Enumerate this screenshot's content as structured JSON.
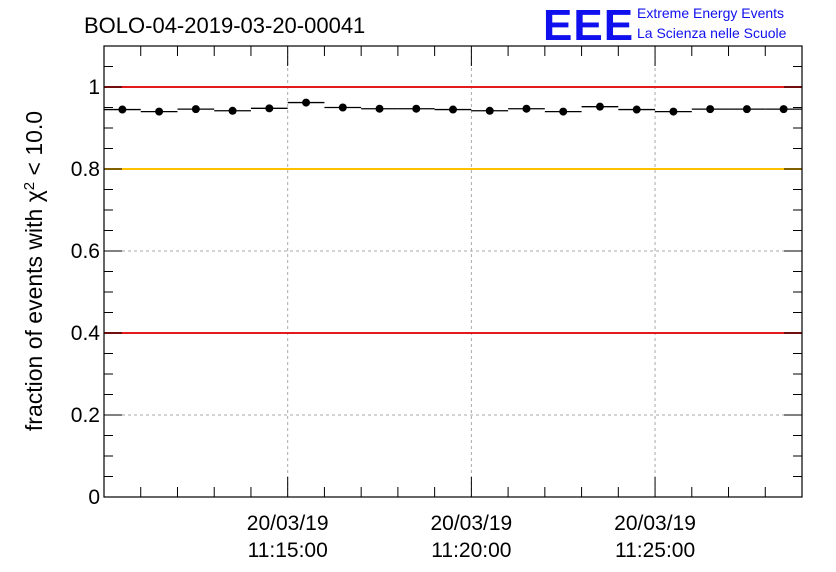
{
  "header": {
    "run_title": "BOLO-04-2019-03-20-00041",
    "logo_mark": "EEE",
    "logo_line1": "Extreme Energy Events",
    "logo_line2": "La Scienza nelle Scuole"
  },
  "chart_data": {
    "type": "scatter",
    "title": "BOLO-04-2019-03-20-00041",
    "ylabel_prefix": "fraction of events with χ",
    "ylabel_sup": "2",
    "ylabel_suffix": " < 10.0",
    "xlabel": "",
    "xlim": [
      "11:10:00",
      "11:29:00"
    ],
    "ylim": [
      0,
      1.1
    ],
    "y_ticks": [
      0,
      0.2,
      0.4,
      0.6,
      0.8,
      1
    ],
    "y_tick_labels": [
      "0",
      "0.2",
      "0.4",
      "0.6",
      "0.8",
      "1"
    ],
    "x_ticks": [
      {
        "time": "11:15:00",
        "date": "20/03/19",
        "label": "11:15:00"
      },
      {
        "time": "11:20:00",
        "date": "20/03/19",
        "label": "11:20:00"
      },
      {
        "time": "11:25:00",
        "date": "20/03/19",
        "label": "11:25:00"
      }
    ],
    "reference_lines": [
      {
        "y": 1.0,
        "color": "#e31a1c"
      },
      {
        "y": 0.8,
        "color": "#ffc000"
      },
      {
        "y": 0.4,
        "color": "#e31a1c"
      }
    ],
    "grid": true,
    "bin_width_min": 1,
    "points": [
      {
        "t": "11:10:30",
        "y": 0.945
      },
      {
        "t": "11:11:30",
        "y": 0.94
      },
      {
        "t": "11:12:30",
        "y": 0.946
      },
      {
        "t": "11:13:30",
        "y": 0.942
      },
      {
        "t": "11:14:30",
        "y": 0.948
      },
      {
        "t": "11:15:30",
        "y": 0.962
      },
      {
        "t": "11:16:30",
        "y": 0.95
      },
      {
        "t": "11:17:30",
        "y": 0.947
      },
      {
        "t": "11:18:30",
        "y": 0.947
      },
      {
        "t": "11:19:30",
        "y": 0.945
      },
      {
        "t": "11:20:30",
        "y": 0.942
      },
      {
        "t": "11:21:30",
        "y": 0.947
      },
      {
        "t": "11:22:30",
        "y": 0.94
      },
      {
        "t": "11:23:30",
        "y": 0.952
      },
      {
        "t": "11:24:30",
        "y": 0.945
      },
      {
        "t": "11:25:30",
        "y": 0.94
      },
      {
        "t": "11:26:30",
        "y": 0.946
      },
      {
        "t": "11:27:30",
        "y": 0.946
      },
      {
        "t": "11:28:30",
        "y": 0.946
      }
    ]
  }
}
